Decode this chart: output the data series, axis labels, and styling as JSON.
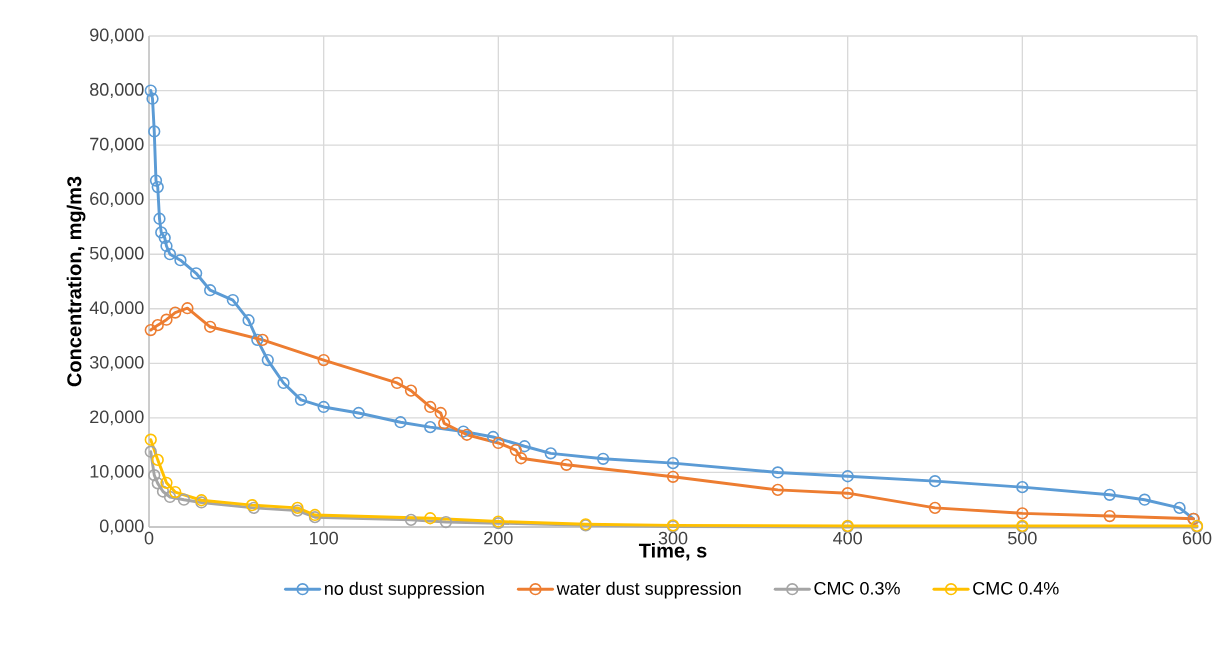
{
  "chart_data": {
    "type": "line",
    "xlabel": "Time, s",
    "ylabel": "Concentration, mg/m3",
    "xlim": [
      0,
      600
    ],
    "xticks": [
      0,
      100,
      200,
      300,
      400,
      500,
      600
    ],
    "ylim": [
      0,
      90000
    ],
    "yticks": [
      {
        "value": 0,
        "label": "0,000"
      },
      {
        "value": 10000,
        "label": "10,000"
      },
      {
        "value": 20000,
        "label": "20,000"
      },
      {
        "value": 30000,
        "label": "30,000"
      },
      {
        "value": 40000,
        "label": "40,000"
      },
      {
        "value": 50000,
        "label": "50,000"
      },
      {
        "value": 60000,
        "label": "60,000"
      },
      {
        "value": 70000,
        "label": "70,000"
      },
      {
        "value": 80000,
        "label": "80,000"
      },
      {
        "value": 90000,
        "label": "90,000"
      }
    ],
    "grid": true,
    "legend": "bottom",
    "marker": "circle",
    "line_style": "solid",
    "series": [
      {
        "name": "no dust suppression",
        "color": "#5b9bd5",
        "x": [
          1,
          2,
          3,
          4,
          5,
          6,
          7,
          9,
          10,
          12,
          18,
          27,
          35,
          48,
          57,
          62,
          68,
          77,
          87,
          100,
          120,
          144,
          161,
          180,
          197,
          215,
          230,
          260,
          300,
          360,
          400,
          450,
          500,
          550,
          570,
          590,
          598
        ],
        "values": [
          80000,
          78500,
          72500,
          63500,
          62300,
          56500,
          54000,
          53000,
          51500,
          50000,
          48900,
          46500,
          43400,
          41600,
          37900,
          34300,
          30600,
          26400,
          23300,
          22000,
          20900,
          19200,
          18300,
          17500,
          16500,
          14800,
          13500,
          12500,
          11700,
          10000,
          9300,
          8400,
          7300,
          5900,
          5000,
          3500,
          1500
        ]
      },
      {
        "name": "water dust suppression",
        "color": "#ed7d31",
        "x": [
          1,
          5,
          10,
          15,
          22,
          35,
          65,
          100,
          142,
          150,
          161,
          167,
          169,
          182,
          200,
          210,
          213,
          239,
          300,
          360,
          400,
          450,
          500,
          550,
          598
        ],
        "values": [
          36100,
          37000,
          38000,
          39300,
          40100,
          36700,
          34300,
          30600,
          26400,
          25000,
          22000,
          20900,
          19000,
          16900,
          15400,
          14100,
          12600,
          11400,
          9200,
          6800,
          6200,
          3500,
          2500,
          2000,
          1500
        ]
      },
      {
        "name": "CMC 0.3%",
        "color": "#a5a5a5",
        "x": [
          1,
          3,
          5,
          8,
          12,
          20,
          30,
          60,
          85,
          95,
          150,
          170,
          200,
          250,
          300,
          400,
          500,
          600
        ],
        "values": [
          13800,
          9500,
          8000,
          6500,
          5500,
          5000,
          4500,
          3500,
          3000,
          1800,
          1300,
          900,
          700,
          300,
          100,
          0,
          0,
          0
        ]
      },
      {
        "name": "CMC 0.4%",
        "color": "#ffc000",
        "x": [
          1,
          5,
          10,
          15,
          30,
          59,
          85,
          95,
          161,
          200,
          250,
          300,
          400,
          500,
          600
        ],
        "values": [
          16000,
          12300,
          8100,
          6400,
          4900,
          4000,
          3500,
          2200,
          1600,
          1000,
          500,
          300,
          200,
          200,
          200
        ]
      }
    ]
  }
}
